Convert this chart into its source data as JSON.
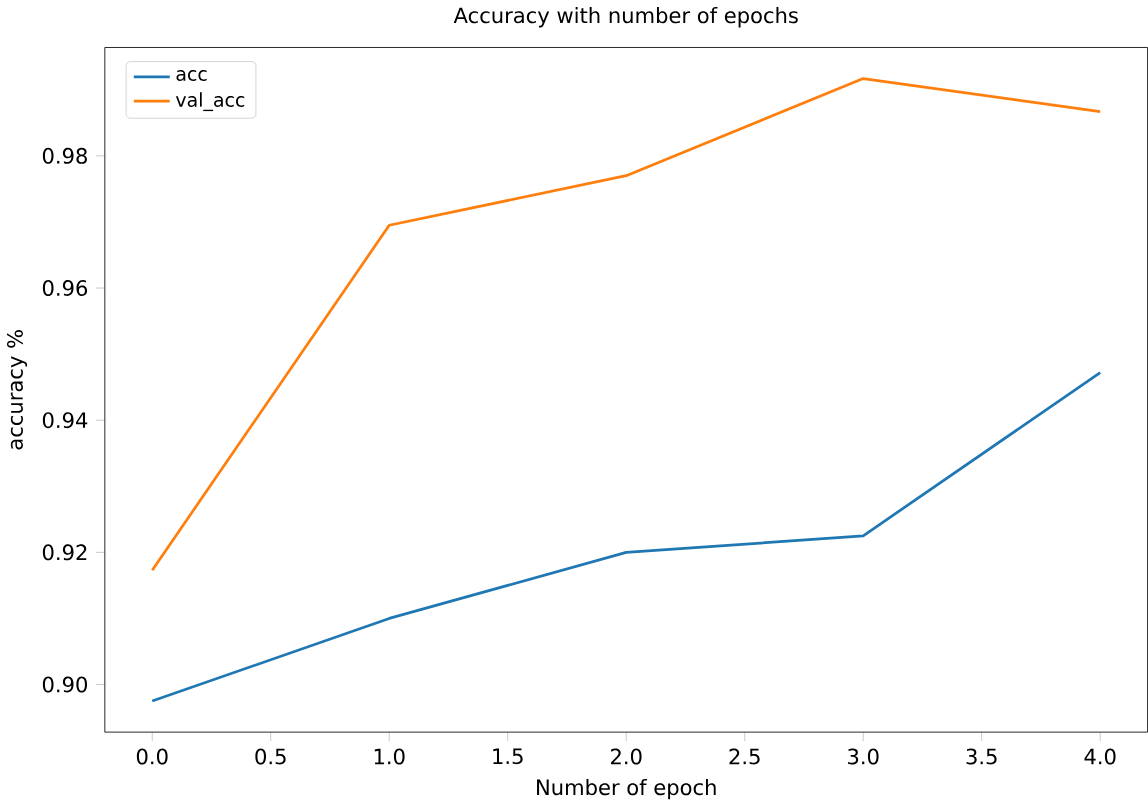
{
  "chart_data": {
    "type": "line",
    "title": "Accuracy with number of epochs",
    "xlabel": "Number of epoch",
    "ylabel": "accuracy %",
    "x": [
      0,
      1,
      2,
      3,
      4
    ],
    "series": [
      {
        "name": "acc",
        "color": "#1f77b4",
        "values": [
          0.8975,
          0.91,
          0.92,
          0.9225,
          0.9472
        ]
      },
      {
        "name": "val_acc",
        "color": "#ff7f0e",
        "values": [
          0.9173,
          0.9695,
          0.977,
          0.9917,
          0.9867
        ]
      }
    ],
    "xlim": [
      -0.2,
      4.2
    ],
    "ylim": [
      0.8928,
      0.9964
    ],
    "xticks": [
      {
        "value": 0,
        "label": "0.0"
      },
      {
        "value": 0.5,
        "label": "0.5"
      },
      {
        "value": 1,
        "label": "1.0"
      },
      {
        "value": 1.5,
        "label": "1.5"
      },
      {
        "value": 2,
        "label": "2.0"
      },
      {
        "value": 2.5,
        "label": "2.5"
      },
      {
        "value": 3,
        "label": "3.0"
      },
      {
        "value": 3.5,
        "label": "3.5"
      },
      {
        "value": 4,
        "label": "4.0"
      }
    ],
    "yticks": [
      {
        "value": 0.9,
        "label": "0.90"
      },
      {
        "value": 0.92,
        "label": "0.92"
      },
      {
        "value": 0.94,
        "label": "0.94"
      },
      {
        "value": 0.96,
        "label": "0.96"
      },
      {
        "value": 0.98,
        "label": "0.98"
      }
    ],
    "legend": "top left",
    "grid": false,
    "marker": "none",
    "line_style": "solid"
  }
}
